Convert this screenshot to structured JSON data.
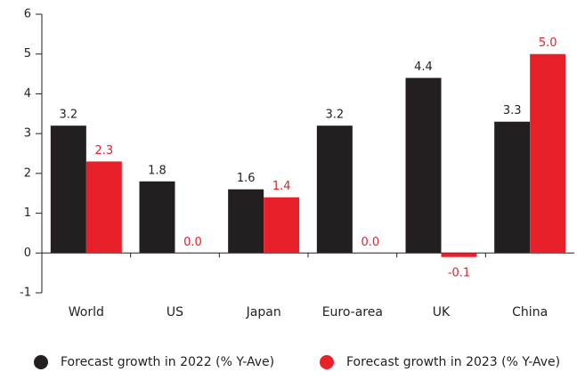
{
  "chart_data": {
    "type": "bar",
    "categories": [
      "World",
      "US",
      "Japan",
      "Euro-area",
      "UK",
      "China"
    ],
    "series": [
      {
        "name": "Forecast growth in 2022 (% Y-Ave)",
        "color": "#231f20",
        "label_color": "#231f20",
        "values": [
          3.2,
          1.8,
          1.6,
          3.2,
          4.4,
          3.3
        ],
        "value_labels": [
          "3.2",
          "1.8",
          "1.6",
          "3.2",
          "4.4",
          "3.3"
        ]
      },
      {
        "name": "Forecast growth in 2023 (% Y-Ave)",
        "color": "#e8202a",
        "label_color": "#e8202a",
        "values": [
          2.3,
          0.0,
          1.4,
          0.0,
          -0.1,
          5.0
        ],
        "value_labels": [
          "2.3",
          "0.0",
          "1.4",
          "0.0",
          "-0.1",
          "5.0"
        ]
      }
    ],
    "ylim": [
      -1,
      6
    ],
    "yticks": [
      -1,
      0,
      1,
      2,
      3,
      4,
      5,
      6
    ],
    "legend": "bottom"
  }
}
